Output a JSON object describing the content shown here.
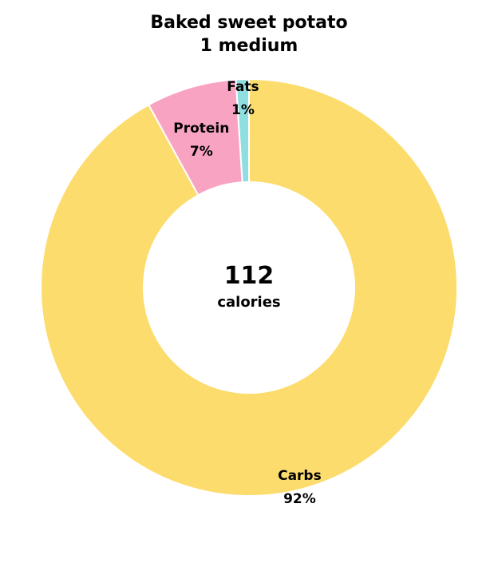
{
  "chart_data": {
    "type": "pie",
    "title": "Baked sweet potato",
    "subtitle": "1 medium",
    "center_value": "112",
    "center_unit": "calories",
    "slices": [
      {
        "label": "Carbs",
        "value": 92,
        "display": "92%",
        "color": "#FDDC6E"
      },
      {
        "label": "Protein",
        "value": 7,
        "display": "7%",
        "color": "#F9A3C3"
      },
      {
        "label": "Fats",
        "value": 1,
        "display": "1%",
        "color": "#8FDFE0"
      }
    ]
  }
}
